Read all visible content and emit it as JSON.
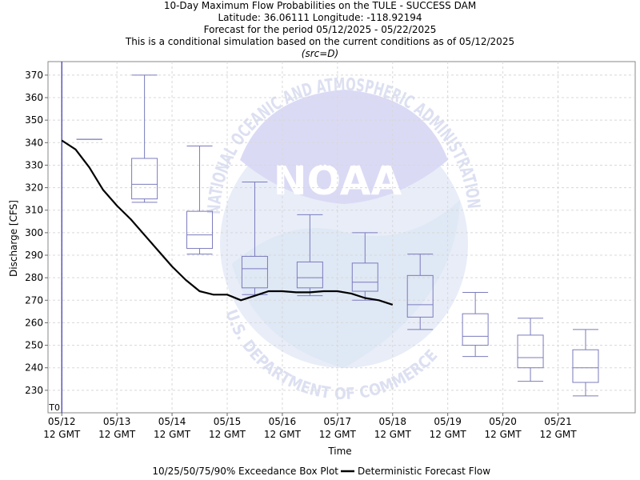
{
  "header": {
    "title_lines": [
      "10-Day Maximum Flow Probabilities on the TULE - SUCCESS DAM",
      "Latitude: 36.06111 Longitude: -118.92194",
      "Forecast for the period 05/12/2025 - 05/22/2025",
      "This is a conditional simulation based on the current conditions as of 05/12/2025"
    ],
    "src": "(src=D)"
  },
  "watermark": {
    "logo_text": "NOAA",
    "ring_text": "NATIONAL OCEANIC AND ATMOSPHERIC ADMINISTRATION",
    "bottom_text": "U.S. DEPARTMENT OF COMMERCE"
  },
  "colors": {
    "box": "#7b7bbd",
    "line": "#000000",
    "t0": "#3333aa",
    "grid": "#d8d8d8"
  },
  "chart_data": {
    "type": "box",
    "ylabel": "Discharge [CFS]",
    "xlabel": "Time",
    "ylim": [
      220,
      376
    ],
    "yticks": [
      230,
      240,
      250,
      260,
      270,
      280,
      290,
      300,
      310,
      320,
      330,
      340,
      350,
      360,
      370
    ],
    "xlim": [
      -0.25,
      10.4
    ],
    "xticks": [
      {
        "day": 0,
        "l1": "05/12",
        "l2": "12 GMT"
      },
      {
        "day": 1,
        "l1": "05/13",
        "l2": "12 GMT"
      },
      {
        "day": 2,
        "l1": "05/14",
        "l2": "12 GMT"
      },
      {
        "day": 3,
        "l1": "05/15",
        "l2": "12 GMT"
      },
      {
        "day": 4,
        "l1": "05/16",
        "l2": "12 GMT"
      },
      {
        "day": 5,
        "l1": "05/17",
        "l2": "12 GMT"
      },
      {
        "day": 6,
        "l1": "05/18",
        "l2": "12 GMT"
      },
      {
        "day": 7,
        "l1": "05/19",
        "l2": "12 GMT"
      },
      {
        "day": 8,
        "l1": "05/20",
        "l2": "12 GMT"
      },
      {
        "day": 9,
        "l1": "05/21",
        "l2": "12 GMT"
      }
    ],
    "t0_label": "T0",
    "t0_day": 0,
    "legend": [
      {
        "label": "10/25/50/75/90% Exceedance Box Plot",
        "kind": "box"
      },
      {
        "label": "Deterministic Forecast Flow",
        "kind": "line"
      }
    ],
    "boxes": [
      {
        "day": 0.5,
        "p10": 341.5,
        "p25": 341.5,
        "p50": 341.5,
        "p75": 341.5,
        "p90": 341.5
      },
      {
        "day": 1.5,
        "p10": 313.5,
        "p25": 315,
        "p50": 321.5,
        "p75": 333,
        "p90": 370
      },
      {
        "day": 2.5,
        "p10": 290.5,
        "p25": 293,
        "p50": 299,
        "p75": 309.5,
        "p90": 338.5
      },
      {
        "day": 3.5,
        "p10": 272.5,
        "p25": 275.5,
        "p50": 284,
        "p75": 289.5,
        "p90": 322.5
      },
      {
        "day": 4.5,
        "p10": 272,
        "p25": 275.5,
        "p50": 280,
        "p75": 287,
        "p90": 308
      },
      {
        "day": 5.5,
        "p10": 270,
        "p25": 274,
        "p50": 278,
        "p75": 286.5,
        "p90": 300
      },
      {
        "day": 6.5,
        "p10": 257,
        "p25": 262.5,
        "p50": 268,
        "p75": 281,
        "p90": 290.5
      },
      {
        "day": 7.5,
        "p10": 245,
        "p25": 250,
        "p50": 254,
        "p75": 264,
        "p90": 273.5
      },
      {
        "day": 8.5,
        "p10": 234,
        "p25": 240,
        "p50": 244.5,
        "p75": 254.5,
        "p90": 262
      },
      {
        "day": 9.5,
        "p10": 227.5,
        "p25": 233.5,
        "p50": 240,
        "p75": 248,
        "p90": 257
      }
    ],
    "deterministic": {
      "name": "Deterministic Forecast Flow",
      "x": [
        0.0,
        0.25,
        0.5,
        0.75,
        1.0,
        1.25,
        1.5,
        1.75,
        2.0,
        2.25,
        2.5,
        2.75,
        3.0,
        3.25,
        3.5,
        3.75,
        4.0,
        4.25,
        4.5,
        4.75,
        5.0,
        5.25,
        5.5,
        5.75,
        6.0
      ],
      "y": [
        341,
        337,
        329,
        319,
        312,
        306,
        299,
        292,
        285,
        279,
        274,
        272.5,
        272.5,
        270,
        272,
        274,
        274,
        273.5,
        273.5,
        274,
        274,
        273,
        271,
        270,
        268
      ]
    }
  },
  "legend_display": {
    "box_label": "10/25/50/75/90% Exceedance Box Plot",
    "line_label": "Deterministic Forecast Flow"
  }
}
